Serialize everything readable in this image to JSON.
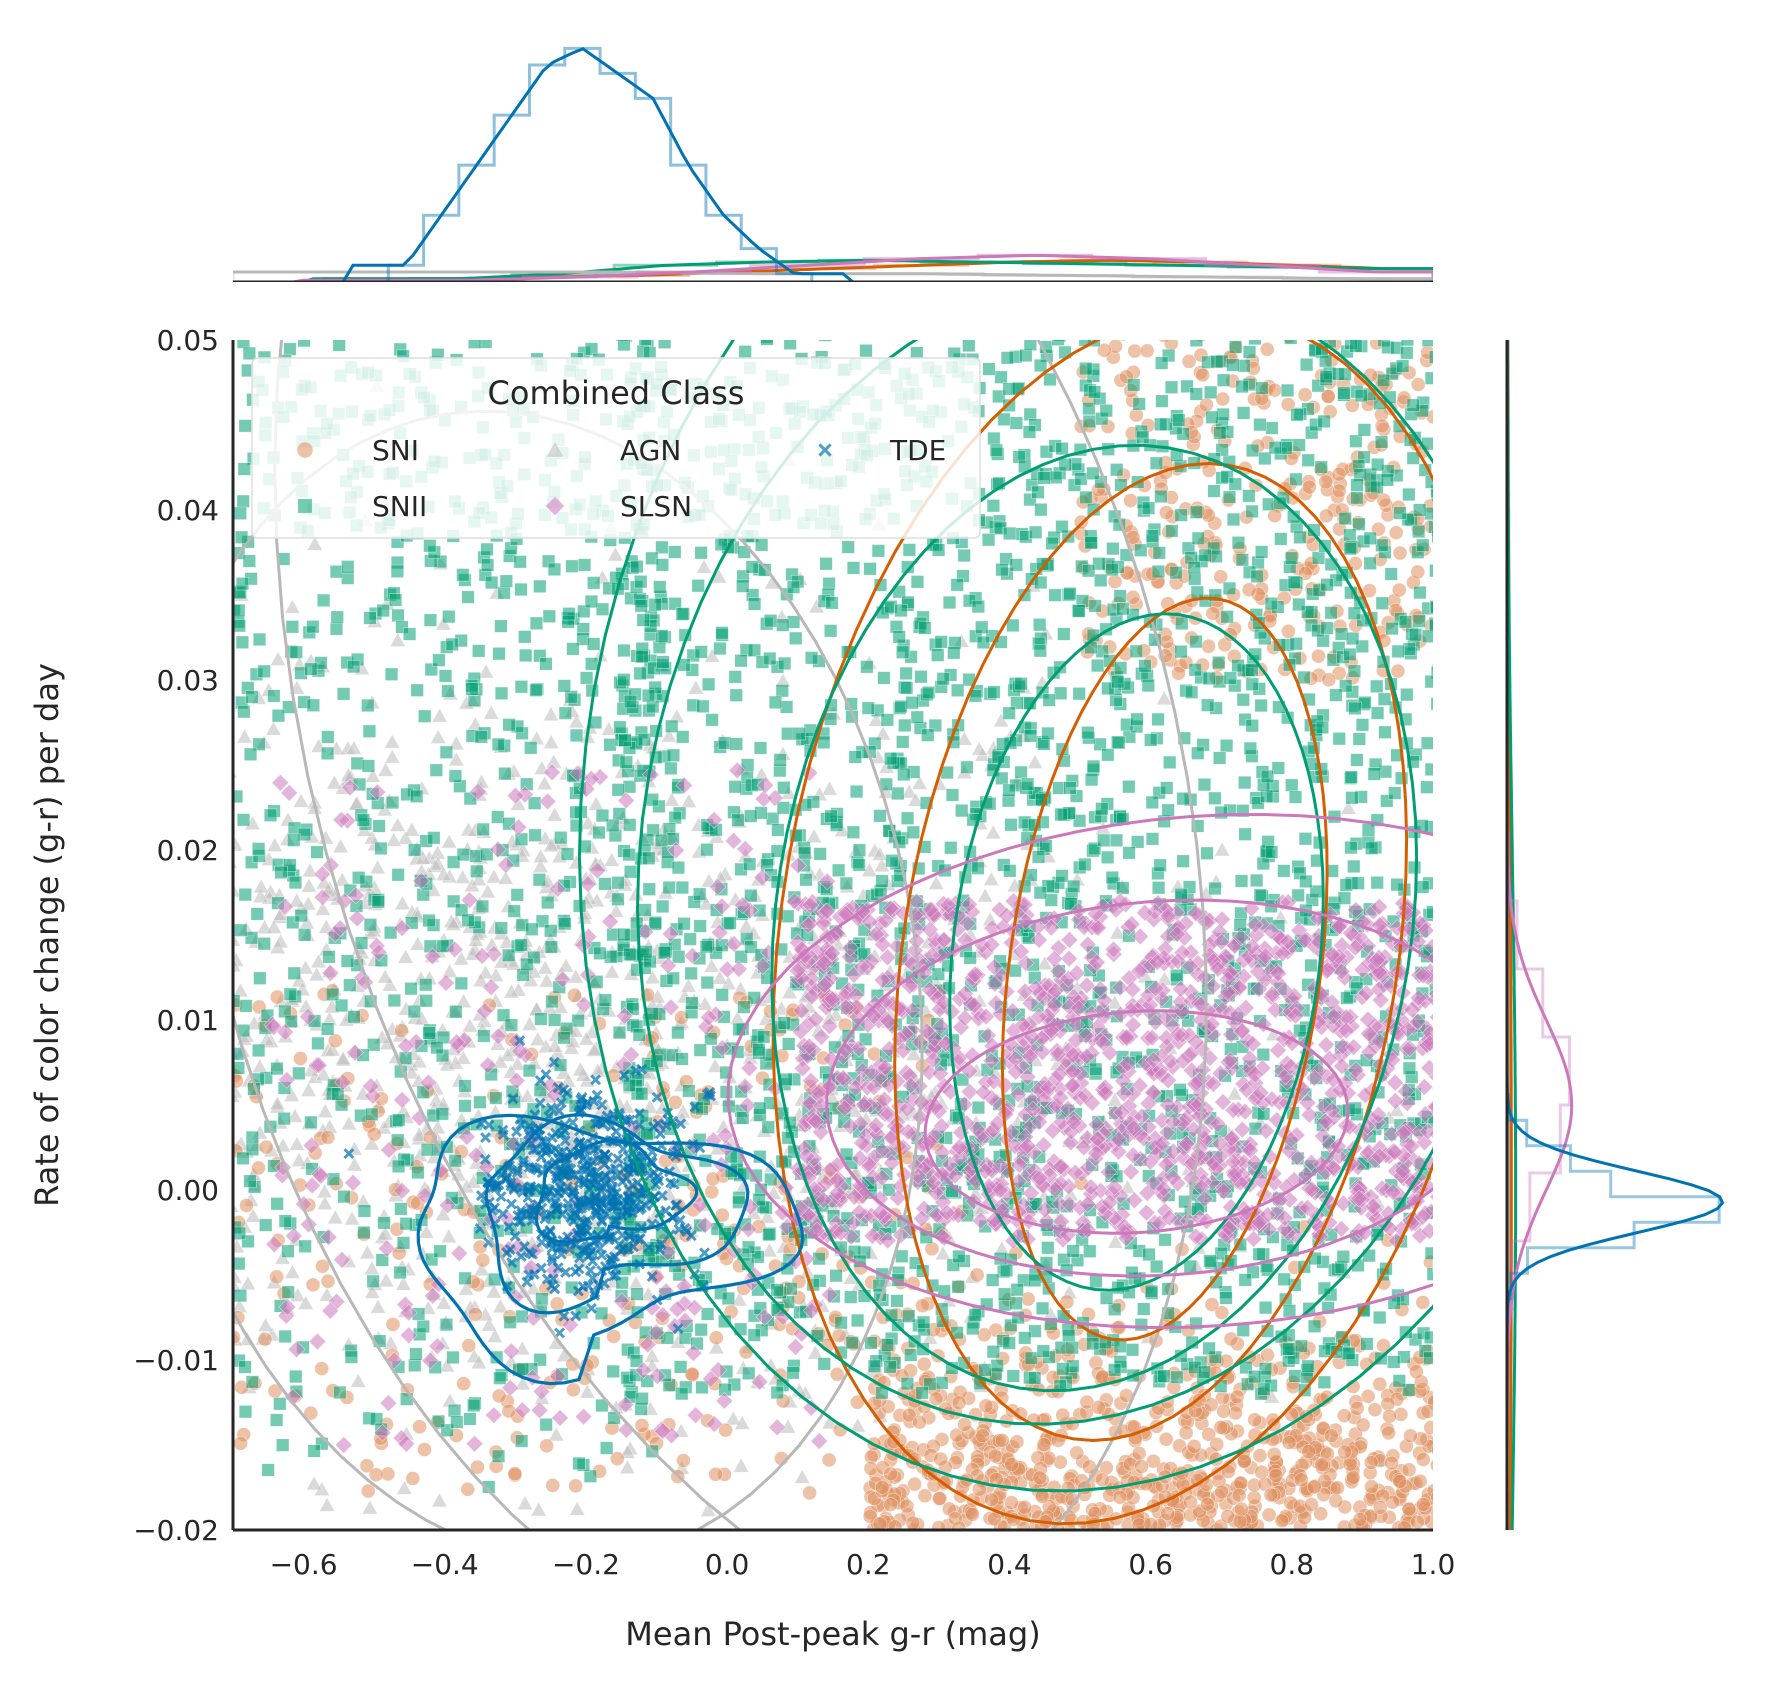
{
  "chart_data": {
    "type": "scatter",
    "title": "",
    "xlabel": "Mean Post-peak g-r (mag)",
    "ylabel": "Rate of color change (g-r) per day",
    "xlim": [
      -0.7,
      1.0
    ],
    "ylim": [
      -0.02,
      0.05
    ],
    "xticks": [
      -0.6,
      -0.4,
      -0.2,
      0.0,
      0.2,
      0.4,
      0.6,
      0.8,
      1.0
    ],
    "xtick_labels": [
      "−0.6",
      "−0.4",
      "−0.2",
      "0.0",
      "0.2",
      "0.4",
      "0.6",
      "0.8",
      "1.0"
    ],
    "yticks": [
      -0.02,
      -0.01,
      0.0,
      0.01,
      0.02,
      0.03,
      0.04,
      0.05
    ],
    "ytick_labels": [
      "−0.02",
      "−0.01",
      "0.00",
      "0.01",
      "0.02",
      "0.03",
      "0.04",
      "0.05"
    ],
    "grid": false,
    "legend": {
      "title": "Combined Class",
      "placement": "upper-left",
      "columns": 3,
      "entries": [
        "SNI",
        "SNII",
        "AGN",
        "SLSN",
        "TDE"
      ]
    },
    "marginals": {
      "top": "histogram + kde of x per class",
      "right": "histogram + kde of y per class"
    },
    "series": [
      {
        "name": "SNI",
        "marker": "circle",
        "color": "#de8f5f",
        "line_color": "#d55e00",
        "center": [
          0.55,
          0.012
        ],
        "spread": [
          0.45,
          0.025
        ],
        "kde_contours": "ellipses",
        "x_hist_bins": [
          0.002,
          0.003,
          0.004,
          0.006,
          0.008,
          0.01,
          0.012,
          0.013,
          0.012,
          0.01,
          0.008
        ]
      },
      {
        "name": "SNII",
        "marker": "square",
        "color": "#029e73",
        "line_color": "#029e73",
        "center": [
          0.45,
          0.018
        ],
        "spread": [
          0.5,
          0.028
        ],
        "kde_contours": "ellipses",
        "x_hist_bins": [
          0.002,
          0.005,
          0.01,
          0.012,
          0.013,
          0.012,
          0.011,
          0.01,
          0.009,
          0.008
        ]
      },
      {
        "name": "AGN",
        "marker": "triangle",
        "color": "#bbbbbb",
        "line_color": "#b8b8b8",
        "center": [
          -0.3,
          0.008
        ],
        "spread": [
          0.6,
          0.03
        ],
        "kde_contours": "ellipses",
        "x_hist_bins": [
          0.006,
          0.006,
          0.006,
          0.005,
          0.005,
          0.004,
          0.003,
          0.002
        ]
      },
      {
        "name": "SLSN",
        "marker": "diamond",
        "color": "#cc78bc",
        "line_color": "#cc78bc",
        "center": [
          0.55,
          0.004
        ],
        "spread": [
          0.4,
          0.008
        ],
        "kde_contours": "ellipses",
        "x_hist_bins": [
          0.001,
          0.003,
          0.006,
          0.01,
          0.014,
          0.016,
          0.014,
          0.01,
          0.006
        ]
      },
      {
        "name": "TDE",
        "marker": "x",
        "color": "#0173b2",
        "line_color": "#0173b2",
        "center": [
          -0.2,
          0.0
        ],
        "spread": [
          0.12,
          0.004
        ],
        "kde_contours": "closed",
        "x_hist_bins": [
          0.01,
          0.04,
          0.07,
          0.1,
          0.13,
          0.14,
          0.125,
          0.11,
          0.07,
          0.04,
          0.02,
          0.005
        ]
      }
    ]
  }
}
